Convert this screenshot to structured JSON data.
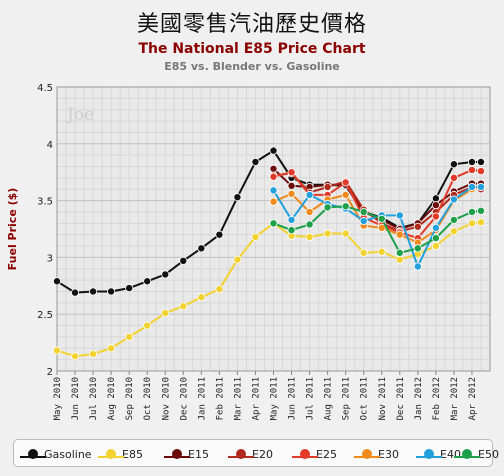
{
  "header": {
    "top_title": "美國零售汽油歷史價格",
    "chart_title": "The National E85 Price Chart",
    "chart_subtitle": "E85 vs. Blender vs. Gasoline"
  },
  "watermark": "Joe",
  "colors": {
    "Gasoline": "#111111",
    "E85": "#f2d230",
    "E15": "#6b0a0a",
    "E20": "#b02a1e",
    "E25": "#e23a28",
    "E30": "#f08a1c",
    "E40": "#22a0dc",
    "E50": "#1ea04a"
  },
  "chart_data": {
    "type": "line",
    "title": "The National E85 Price Chart",
    "subtitle": "E85 vs. Blender vs. Gasoline",
    "ylabel": "Fuel Price ($)",
    "xlabel": "",
    "ylim": [
      2,
      4.5
    ],
    "yticks": [
      "2",
      "2.5",
      "3",
      "3.5",
      "4",
      "4.5"
    ],
    "grid": true,
    "legend_position": "bottom",
    "categories": [
      "May 2010",
      "Jun 2010",
      "Jul 2010",
      "Aug 2010",
      "Sep 2010",
      "Oct 2010",
      "Nov 2010",
      "Dec 2010",
      "Jan 2011",
      "Feb 2011",
      "Mar 2011",
      "Apr 2011",
      "May 2011",
      "Jun 2011",
      "Jul 2011",
      "Aug 2011",
      "Sep 2011",
      "Oct 2011",
      "Nov 2011",
      "Dec 2011",
      "Jan 2012",
      "Feb 2012",
      "Mar 2012",
      "Apr 2012"
    ],
    "x": [
      0,
      1,
      2,
      3,
      4,
      5,
      6,
      7,
      8,
      9,
      10,
      11,
      12,
      13,
      14,
      15,
      16,
      17,
      18,
      19,
      20,
      21,
      22,
      23,
      24,
      25,
      26,
      27,
      28,
      29,
      30,
      31,
      32,
      33,
      34,
      35,
      36,
      37,
      38,
      39,
      40,
      41,
      42,
      43,
      44,
      45,
      46,
      47
    ],
    "series": [
      {
        "name": "Gasoline",
        "x": [
          0,
          2,
          4,
          6,
          8,
          10,
          12,
          14,
          16,
          18,
          20,
          22,
          24,
          26,
          28,
          30,
          32,
          34,
          36,
          38,
          40,
          42,
          44,
          46,
          47
        ],
        "values": [
          2.79,
          2.69,
          2.7,
          2.7,
          2.73,
          2.79,
          2.85,
          2.97,
          3.08,
          3.2,
          3.53,
          3.84,
          3.94,
          3.7,
          3.64,
          3.64,
          3.63,
          3.4,
          3.35,
          3.26,
          3.3,
          3.52,
          3.82,
          3.84,
          3.84
        ]
      },
      {
        "name": "E85",
        "x": [
          0,
          2,
          4,
          6,
          8,
          10,
          12,
          14,
          16,
          18,
          20,
          22,
          24,
          26,
          28,
          30,
          32,
          34,
          36,
          38,
          40,
          42,
          44,
          46,
          47
        ],
        "values": [
          2.18,
          2.13,
          2.15,
          2.2,
          2.3,
          2.4,
          2.51,
          2.57,
          2.65,
          2.72,
          2.98,
          3.18,
          3.3,
          3.19,
          3.18,
          3.21,
          3.21,
          3.04,
          3.05,
          2.98,
          3.03,
          3.1,
          3.23,
          3.3,
          3.31
        ]
      },
      {
        "name": "E15",
        "x": [
          24,
          26,
          28,
          30,
          32,
          34,
          36,
          38,
          40,
          42,
          44,
          46,
          47
        ],
        "values": [
          3.78,
          3.63,
          3.62,
          3.64,
          3.64,
          3.4,
          3.33,
          3.25,
          3.3,
          3.46,
          3.58,
          3.65,
          3.65
        ]
      },
      {
        "name": "E20",
        "x": [
          24,
          26,
          28,
          30,
          32,
          34,
          36,
          38,
          40,
          42,
          44,
          46,
          47
        ],
        "values": [
          3.72,
          3.74,
          3.57,
          3.62,
          3.67,
          3.42,
          3.3,
          3.23,
          3.27,
          3.4,
          3.55,
          3.62,
          3.6
        ]
      },
      {
        "name": "E25",
        "x": [
          24,
          26,
          28,
          30,
          32,
          34,
          36,
          38,
          40,
          42,
          44,
          46,
          47
        ],
        "values": [
          3.71,
          3.75,
          3.55,
          3.55,
          3.66,
          3.35,
          3.28,
          3.22,
          3.17,
          3.36,
          3.7,
          3.77,
          3.76
        ]
      },
      {
        "name": "E30",
        "x": [
          24,
          26,
          28,
          30,
          32,
          34,
          36,
          38,
          40,
          42,
          44,
          46,
          47
        ],
        "values": [
          3.49,
          3.56,
          3.4,
          3.51,
          3.55,
          3.28,
          3.26,
          3.2,
          3.13,
          3.24,
          3.5,
          3.6,
          3.62
        ]
      },
      {
        "name": "E40",
        "x": [
          24,
          26,
          28,
          30,
          32,
          34,
          36,
          38,
          40,
          42,
          44,
          46,
          47
        ],
        "values": [
          3.59,
          3.33,
          3.55,
          3.47,
          3.43,
          3.32,
          3.37,
          3.37,
          2.92,
          3.26,
          3.51,
          3.62,
          3.62
        ]
      },
      {
        "name": "E50",
        "x": [
          24,
          26,
          28,
          30,
          32,
          34,
          36,
          38,
          40,
          42,
          44,
          46,
          47
        ],
        "values": [
          3.3,
          3.24,
          3.29,
          3.44,
          3.45,
          3.4,
          3.34,
          3.04,
          3.08,
          3.17,
          3.33,
          3.4,
          3.41
        ]
      }
    ]
  }
}
